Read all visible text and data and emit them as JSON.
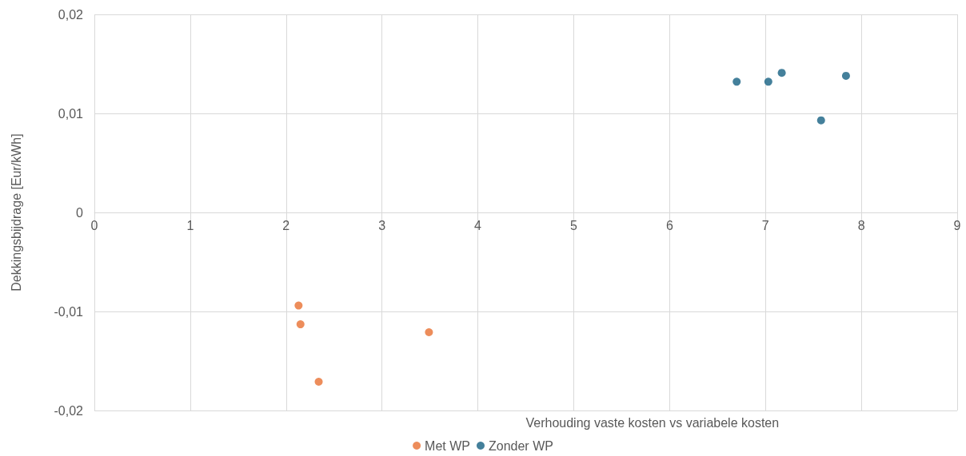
{
  "chart_data": {
    "type": "scatter",
    "xlabel": "Verhouding vaste kosten vs variabele kosten",
    "ylabel": "Dekkingsbijdrage [Eur/kWh]",
    "xlim": [
      0,
      9
    ],
    "xticks": [
      0,
      1,
      2,
      3,
      4,
      5,
      6,
      7,
      8,
      9
    ],
    "ylim": [
      -0.02,
      0.02
    ],
    "yticks": [
      {
        "value": -0.02,
        "label": "-0,02"
      },
      {
        "value": -0.01,
        "label": "-0,01"
      },
      0,
      {
        "value": 0.01,
        "label": "0,01"
      },
      {
        "value": 0.02,
        "label": "0,02"
      }
    ],
    "grid": true,
    "legend": "bottom",
    "marker": "circle",
    "series": [
      {
        "name": "Met WP",
        "color": "#e97132",
        "x": [
          2.13,
          2.15,
          2.34,
          3.49
        ],
        "values": [
          -0.0094,
          -0.0113,
          -0.0171,
          -0.0121
        ]
      },
      {
        "name": "Zonder WP",
        "color": "#156082",
        "x": [
          6.7,
          7.03,
          7.17,
          7.58,
          7.84
        ],
        "values": [
          0.0132,
          0.0132,
          0.0141,
          0.0093,
          0.0138
        ]
      }
    ]
  }
}
